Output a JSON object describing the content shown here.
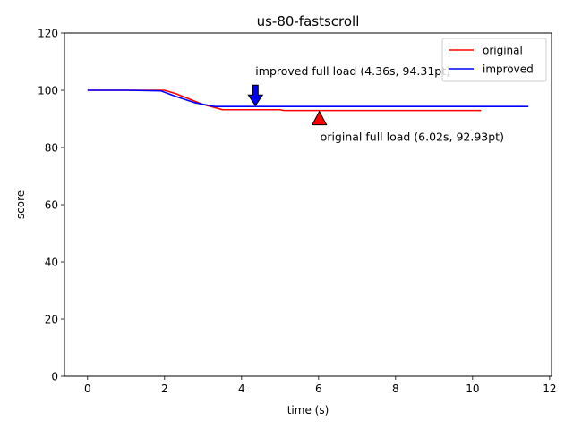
{
  "chart_data": {
    "type": "line",
    "title": "us-80-fastscroll",
    "xlabel": "time (s)",
    "ylabel": "score",
    "xlim": [
      -0.6,
      12.05
    ],
    "ylim": [
      0,
      120
    ],
    "xticks": [
      0,
      2,
      4,
      6,
      8,
      10,
      12
    ],
    "yticks": [
      0,
      20,
      40,
      60,
      80,
      100,
      120
    ],
    "grid": false,
    "legend_position": "top-right",
    "series": [
      {
        "name": "original",
        "color": "#ff0000",
        "points": [
          [
            0,
            100
          ],
          [
            1,
            100
          ],
          [
            2.0,
            100
          ],
          [
            2.3,
            98.8
          ],
          [
            2.6,
            97.2
          ],
          [
            3.0,
            95.0
          ],
          [
            3.3,
            94.0
          ],
          [
            3.5,
            93.2
          ],
          [
            4.0,
            93.2
          ],
          [
            5.0,
            93.2
          ],
          [
            5.1,
            92.93
          ],
          [
            6.02,
            92.93
          ],
          [
            8,
            92.93
          ],
          [
            10.22,
            92.93
          ]
        ]
      },
      {
        "name": "improved",
        "color": "#0000ff",
        "points": [
          [
            0,
            100
          ],
          [
            1,
            100
          ],
          [
            1.9,
            99.8
          ],
          [
            2.3,
            97.8
          ],
          [
            2.8,
            95.6
          ],
          [
            3.3,
            94.31
          ],
          [
            4.36,
            94.31
          ],
          [
            6,
            94.31
          ],
          [
            8,
            94.31
          ],
          [
            10,
            94.31
          ],
          [
            11.45,
            94.31
          ]
        ]
      }
    ],
    "annotations": [
      {
        "text": "improved full load (4.36s, 94.31pt)",
        "x": 4.36,
        "y": 94.31,
        "color": "#0000ff",
        "direction": "down"
      },
      {
        "text": "original full load (6.02s, 92.93pt)",
        "x": 6.02,
        "y": 92.93,
        "color": "#ff0000",
        "direction": "up"
      }
    ]
  }
}
